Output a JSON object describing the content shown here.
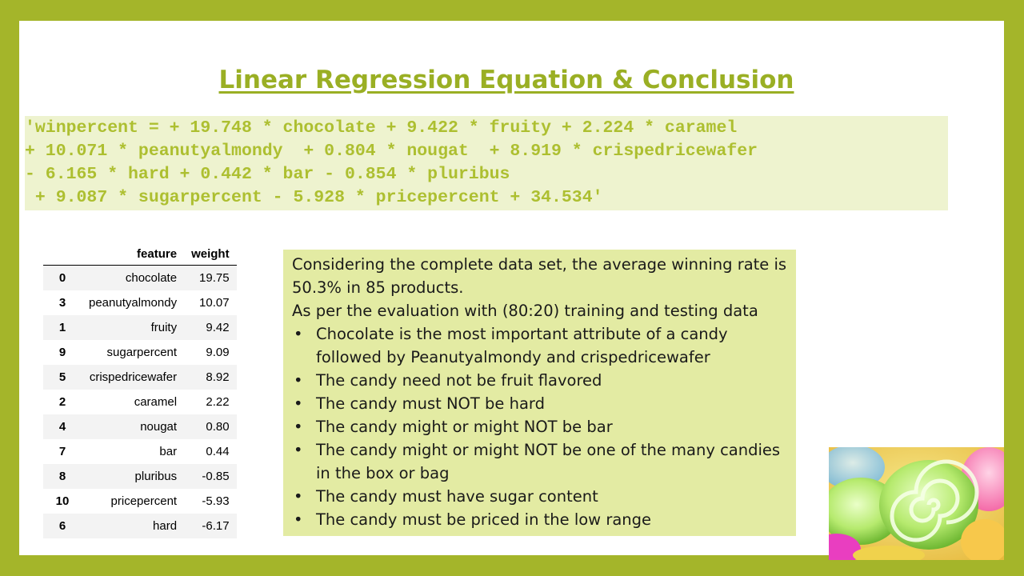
{
  "title": "Linear Regression Equation & Conclusion",
  "equation": [
    "'winpercent = + 19.748 * chocolate + 9.422 * fruity + 2.224 * caramel",
    "+ 10.071 * peanutyalmondy  + 0.804 * nougat  + 8.919 * crispedricewafer",
    "- 6.165 * hard + 0.442 * bar - 0.854 * pluribus",
    " + 9.087 * sugarpercent - 5.928 * pricepercent + 34.534'"
  ],
  "table": {
    "headers": [
      "feature",
      "weight"
    ],
    "rows": [
      {
        "index": "0",
        "feature": "chocolate",
        "weight": "19.75"
      },
      {
        "index": "3",
        "feature": "peanutyalmondy",
        "weight": "10.07"
      },
      {
        "index": "1",
        "feature": "fruity",
        "weight": "9.42"
      },
      {
        "index": "9",
        "feature": "sugarpercent",
        "weight": "9.09"
      },
      {
        "index": "5",
        "feature": "crispedricewafer",
        "weight": "8.92"
      },
      {
        "index": "2",
        "feature": "caramel",
        "weight": "2.22"
      },
      {
        "index": "4",
        "feature": "nougat",
        "weight": "0.80"
      },
      {
        "index": "7",
        "feature": "bar",
        "weight": "0.44"
      },
      {
        "index": "8",
        "feature": "pluribus",
        "weight": "-0.85"
      },
      {
        "index": "10",
        "feature": "pricepercent",
        "weight": "-5.93"
      },
      {
        "index": "6",
        "feature": "hard",
        "weight": "-6.17"
      }
    ]
  },
  "conclusion": {
    "intro1": "Considering the complete data set, the average winning rate is 50.3% in 85 products.",
    "intro2": "As per the evaluation with (80:20) training and testing data",
    "bullet_symbol": "•",
    "bullets": [
      "Chocolate is the most important attribute of a candy followed by  Peanutyalmondy and crispedricewafer",
      "The candy need not be fruit flavored",
      "The candy must NOT be hard",
      "The candy might or might NOT be bar",
      "The candy might or might NOT be one of the many candies in the box or bag",
      "The candy must have sugar content",
      "The candy must be priced in the low range"
    ]
  },
  "colors": {
    "frame": "#a4b52a",
    "title": "#9aaf24",
    "equation_text": "#adbf30",
    "equation_bg": "#eef3cf",
    "conclusion_bg": "#e3eba3"
  },
  "image": "candy-swirl-photo"
}
